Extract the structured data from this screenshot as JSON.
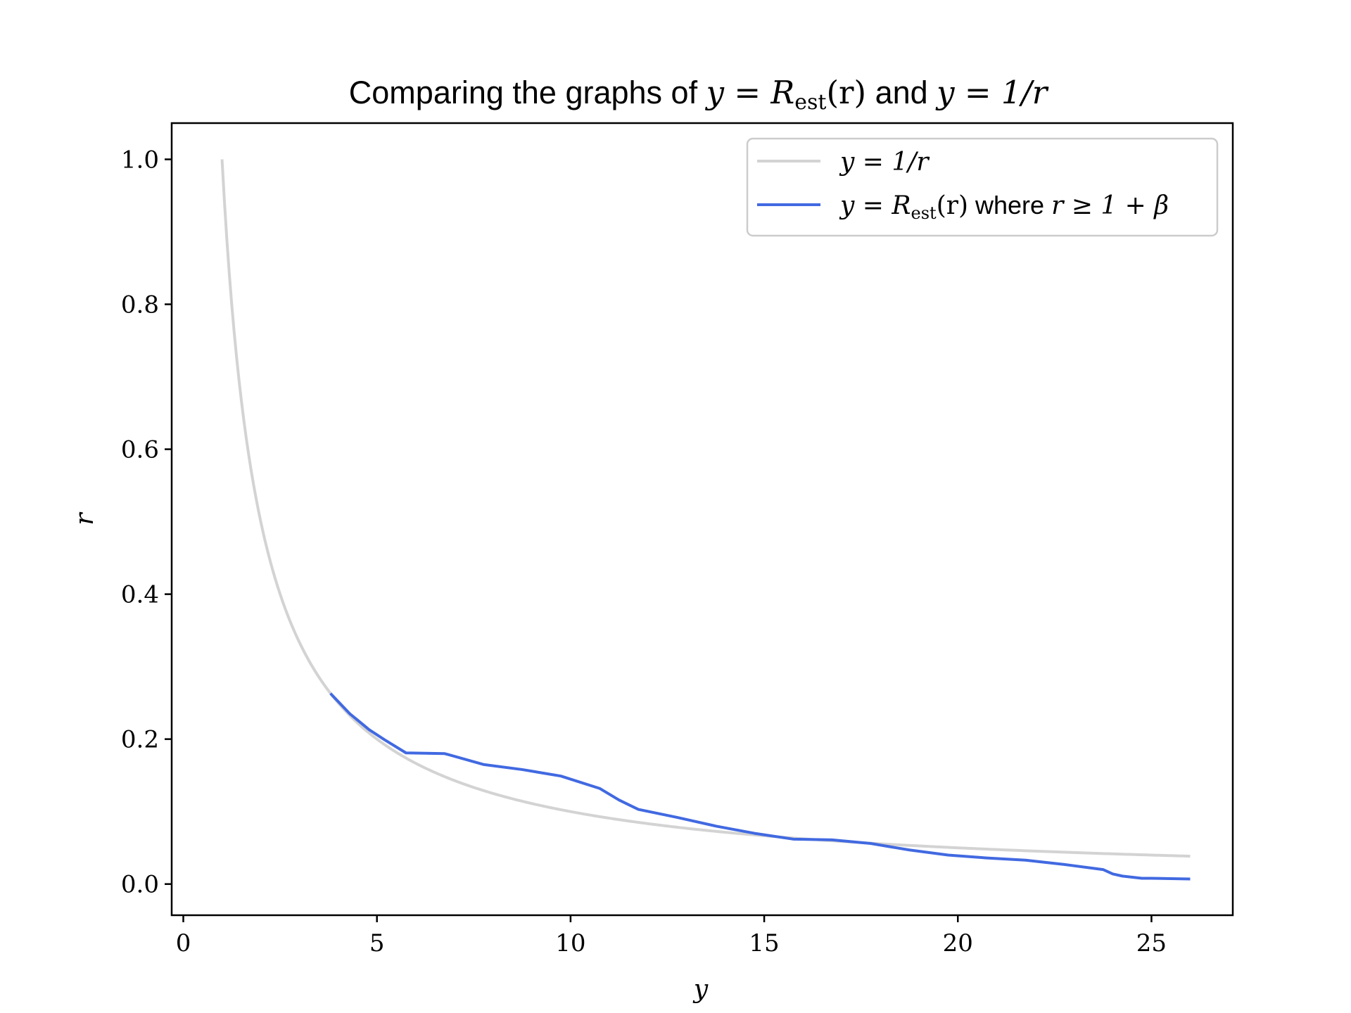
{
  "chart_data": {
    "type": "line",
    "title": {
      "prefix": "Comparing the graphs of ",
      "expr1_lhs": "y",
      "expr1_eq": " = ",
      "expr1_R": "R",
      "expr1_sub": "est",
      "expr1_arg": "(r)",
      "middle": " and ",
      "expr2": "y = 1/r"
    },
    "xlabel": "y",
    "ylabel": "r",
    "xlim": [
      -0.3,
      27.1
    ],
    "ylim": [
      -0.043,
      1.05
    ],
    "xticks": [
      0,
      5,
      10,
      15,
      20,
      25
    ],
    "xtick_labels": [
      "0",
      "5",
      "10",
      "15",
      "20",
      "25"
    ],
    "yticks": [
      0.0,
      0.2,
      0.4,
      0.6,
      0.8,
      1.0
    ],
    "ytick_labels": [
      "0.0",
      "0.2",
      "0.4",
      "0.6",
      "0.8",
      "1.0"
    ],
    "grid": false,
    "legend_position": "top-right",
    "series": [
      {
        "id": "reciprocal",
        "name": "y = 1/r",
        "color": "#d3d3d3",
        "function": "1/x",
        "x_range": [
          1,
          26
        ]
      },
      {
        "id": "rest",
        "name_parts": {
          "lhs": "y",
          "eq": " = ",
          "R": "R",
          "sub": "est",
          "arg": "(r)",
          "word": " where ",
          "cond": "r ≥ 1 + β"
        },
        "color": "#4169e1",
        "x": [
          3.8,
          4.3,
          4.8,
          5.2,
          5.75,
          6.75,
          7.75,
          8.75,
          9.75,
          10.75,
          11.25,
          11.75,
          12.75,
          13.75,
          14.75,
          15.75,
          16.75,
          17.75,
          18.75,
          19.75,
          20.75,
          21.75,
          22.75,
          23.75,
          24.0,
          24.25,
          24.75,
          25.0,
          26.0
        ],
        "y": [
          0.263,
          0.235,
          0.213,
          0.199,
          0.181,
          0.18,
          0.165,
          0.158,
          0.149,
          0.132,
          0.116,
          0.103,
          0.092,
          0.08,
          0.07,
          0.062,
          0.061,
          0.056,
          0.047,
          0.04,
          0.036,
          0.033,
          0.027,
          0.02,
          0.014,
          0.011,
          0.008,
          0.008,
          0.007
        ]
      }
    ]
  }
}
